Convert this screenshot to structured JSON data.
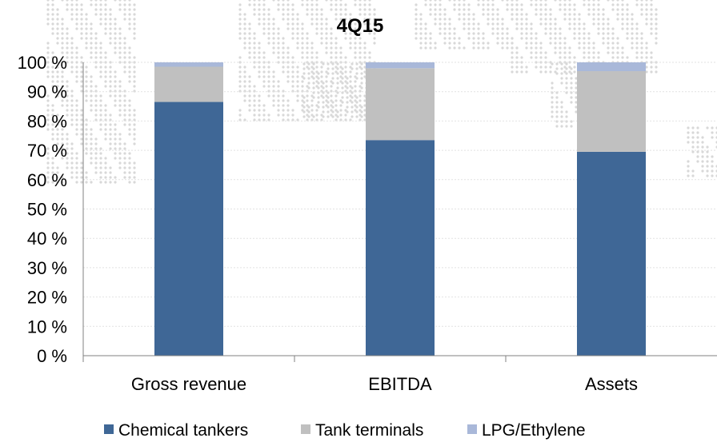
{
  "chart_data": {
    "type": "bar",
    "stacked": true,
    "title": "4Q15",
    "categories": [
      "Gross revenue",
      "EBITDA",
      "Assets"
    ],
    "series": [
      {
        "name": "Chemical tankers",
        "values": [
          86.5,
          73.5,
          69.5
        ],
        "color": "#3f6796"
      },
      {
        "name": "Tank terminals",
        "values": [
          12,
          24.5,
          27.5
        ],
        "color": "#c0c0c0"
      },
      {
        "name": "LPG/Ethylene",
        "values": [
          1.5,
          2,
          3
        ],
        "color": "#a9b8d9"
      }
    ],
    "y_ticks": [
      "0 %",
      "10 %",
      "20 %",
      "30 %",
      "40 %",
      "50 %",
      "60 %",
      "70 %",
      "80 %",
      "90 %",
      "100 %"
    ],
    "ylim": [
      0,
      100
    ],
    "xlabel": "",
    "ylabel": "",
    "grid": true,
    "legend_position": "bottom"
  }
}
